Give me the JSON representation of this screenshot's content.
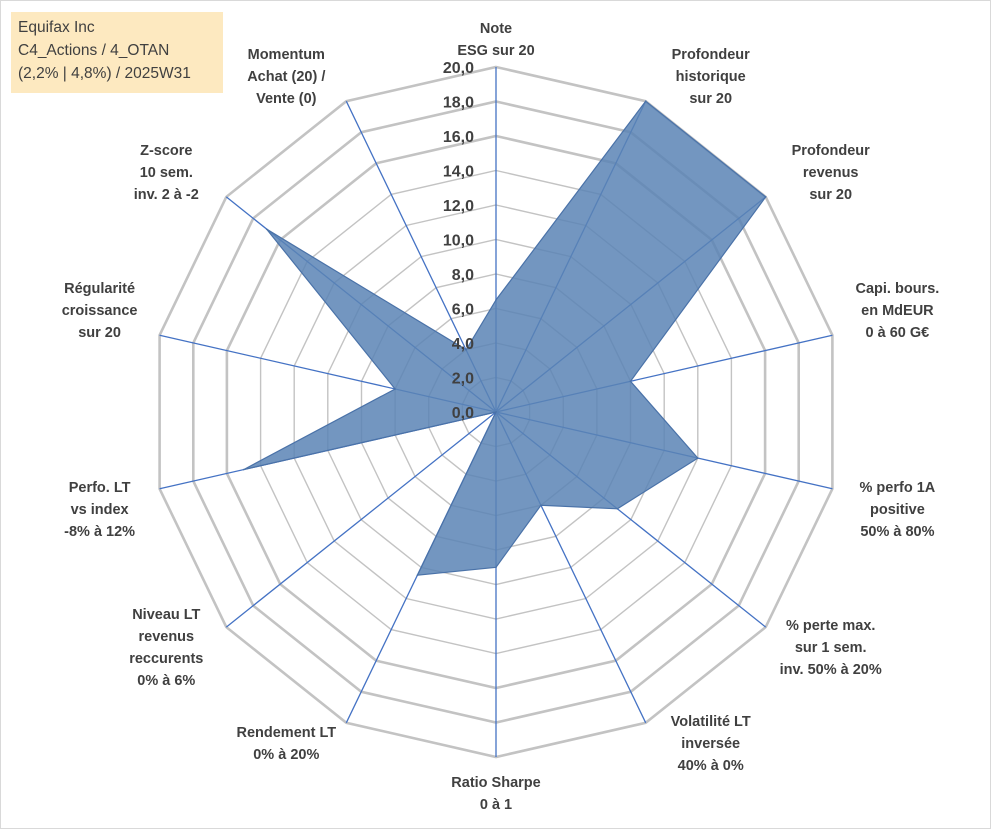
{
  "info": {
    "line1": "Equifax Inc",
    "line2": "C4_Actions / 4_OTAN",
    "line3": "(2,2% | 4,8%) / 2025W31"
  },
  "chart_data": {
    "type": "radar",
    "rmin": 0,
    "rmax": 20,
    "ticks": [
      "0,0",
      "2,0",
      "4,0",
      "6,0",
      "8,0",
      "10,0",
      "12,0",
      "14,0",
      "16,0",
      "18,0",
      "20,0"
    ],
    "categories": [
      [
        "Note",
        "ESG sur 20"
      ],
      [
        "Profondeur",
        "historique",
        "sur 20"
      ],
      [
        "Profondeur",
        "revenus",
        "sur 20"
      ],
      [
        "Capi. bours.",
        "en MdEUR",
        "0 à 60 G€"
      ],
      [
        "% perfo 1A",
        "positive",
        "50% à 80%"
      ],
      [
        "% perte max.",
        "sur 1 sem.",
        "inv. 50% à 20%"
      ],
      [
        "Volatilité LT",
        "inversée",
        "40% à 0%"
      ],
      [
        "Ratio Sharpe",
        "0 à 1"
      ],
      [
        "Rendement LT",
        "0% à 20%"
      ],
      [
        "Niveau LT",
        "revenus",
        "reccurents",
        "0% à 6%"
      ],
      [
        "Perfo. LT",
        "vs index",
        "-8% à 12%"
      ],
      [
        "Régularité",
        "croissance",
        "sur 20"
      ],
      [
        "Z-score",
        "10 sem.",
        "inv. 2 à -2"
      ],
      [
        "Momentum",
        "Achat (20) /",
        "Vente (0)"
      ]
    ],
    "values": [
      6.5,
      20,
      20,
      8,
      12,
      9,
      6,
      9,
      10.5,
      0,
      15,
      6,
      17,
      4
    ],
    "grid": true,
    "colors": {
      "fill": "#5b84b5",
      "stroke": "#4a72a8",
      "axis": "#4472c4",
      "grid": "#c3c3c3"
    }
  }
}
